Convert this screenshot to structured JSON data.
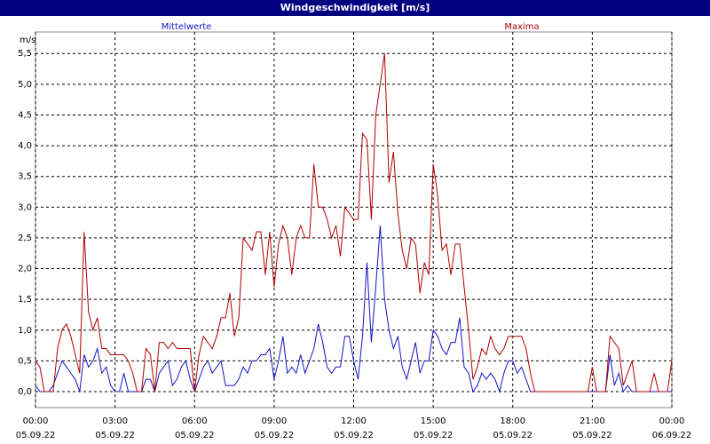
{
  "chart_data": {
    "type": "line",
    "title": "Windgeschwindigkeit [m/s]",
    "y_label": "m/s",
    "x": [
      0,
      10,
      20,
      30,
      40,
      50,
      60,
      70,
      80,
      90,
      100,
      110,
      120,
      130,
      140,
      150,
      160,
      170,
      180,
      190,
      200,
      210,
      220,
      230,
      240,
      250,
      260,
      270,
      280,
      290,
      300,
      310,
      320,
      330,
      340,
      350,
      360,
      370,
      380,
      390,
      400,
      410,
      420,
      430,
      440,
      450,
      460,
      470,
      480,
      490,
      500,
      510,
      520,
      530,
      540,
      550,
      560,
      570,
      580,
      590,
      600,
      610,
      620,
      630,
      640,
      650,
      660,
      670,
      680,
      690,
      700,
      710,
      720,
      730,
      740,
      750,
      760,
      770,
      780,
      790,
      800,
      810,
      820,
      830,
      840,
      850,
      860,
      870,
      880,
      890,
      900,
      910,
      920,
      930,
      940,
      950,
      960,
      970,
      980,
      990,
      1000,
      1010,
      1020,
      1030,
      1040,
      1050,
      1060,
      1070,
      1080,
      1090,
      1100,
      1110,
      1120,
      1130,
      1140,
      1150,
      1160,
      1170,
      1180,
      1190,
      1200,
      1210,
      1220,
      1230,
      1240,
      1250,
      1260,
      1270,
      1280,
      1290,
      1300,
      1310,
      1320,
      1330,
      1340,
      1350,
      1360,
      1370,
      1380,
      1390,
      1400,
      1410,
      1420,
      1430,
      1440
    ],
    "series": [
      {
        "name": "Mittelwerte",
        "color": "#1414c8",
        "values": [
          0.1,
          0,
          0,
          0,
          0.1,
          0.3,
          0.5,
          0.4,
          0.3,
          0.2,
          0,
          0.6,
          0.4,
          0.5,
          0.7,
          0.3,
          0.4,
          0.1,
          0,
          0,
          0.3,
          0,
          0,
          0,
          0,
          0.2,
          0.2,
          0,
          0.3,
          0.4,
          0.5,
          0.1,
          0.2,
          0.4,
          0.5,
          0.2,
          0,
          0.2,
          0.4,
          0.5,
          0.3,
          0.4,
          0.5,
          0.1,
          0.1,
          0.1,
          0.2,
          0.4,
          0.3,
          0.5,
          0.5,
          0.6,
          0.6,
          0.7,
          0.2,
          0.5,
          0.9,
          0.3,
          0.4,
          0.3,
          0.6,
          0.3,
          0.5,
          0.7,
          1.1,
          0.8,
          0.4,
          0.3,
          0.4,
          0.4,
          0.9,
          0.9,
          0.5,
          0.2,
          0.9,
          2.1,
          0.8,
          1.7,
          2.7,
          1.5,
          1.0,
          0.7,
          0.9,
          0.4,
          0.2,
          0.5,
          0.8,
          0.3,
          0.5,
          0.5,
          1.0,
          0.9,
          0.7,
          0.6,
          0.8,
          0.8,
          1.2,
          0.4,
          0.3,
          0,
          0.1,
          0.3,
          0.2,
          0.3,
          0.2,
          0,
          0.3,
          0.5,
          0.5,
          0.3,
          0.4,
          0.2,
          0,
          0,
          0,
          0,
          0,
          0,
          0,
          0,
          0,
          0,
          0,
          0,
          0,
          0,
          0,
          0,
          0,
          0,
          0.6,
          0.1,
          0.3,
          0,
          0.1,
          0,
          0,
          0,
          0,
          0,
          0,
          0,
          0,
          0,
          0
        ]
      },
      {
        "name": "Maxima",
        "color": "#b00000",
        "values": [
          0.5,
          0.4,
          0,
          0,
          0,
          0.7,
          1.0,
          1.1,
          0.9,
          0.6,
          0.3,
          2.6,
          1.3,
          1.0,
          1.2,
          0.7,
          0.7,
          0.6,
          0.6,
          0.6,
          0.6,
          0.5,
          0.3,
          0,
          0,
          0.7,
          0.6,
          0,
          0.8,
          0.8,
          0.7,
          0.8,
          0.7,
          0.7,
          0.7,
          0.7,
          0,
          0.6,
          0.9,
          0.8,
          0.7,
          0.9,
          1.2,
          1.2,
          1.6,
          0.9,
          1.2,
          2.5,
          2.4,
          2.3,
          2.6,
          2.6,
          1.9,
          2.6,
          1.7,
          2.4,
          2.7,
          2.5,
          1.9,
          2.5,
          2.7,
          2.5,
          2.5,
          3.7,
          3.0,
          3.0,
          2.8,
          2.5,
          2.7,
          2.2,
          3.0,
          2.9,
          2.8,
          2.8,
          4.2,
          4.1,
          2.8,
          4.5,
          5.0,
          5.5,
          3.4,
          3.9,
          2.9,
          2.3,
          2.0,
          2.5,
          2.4,
          1.6,
          2.1,
          1.9,
          3.7,
          3.2,
          2.3,
          2.4,
          1.9,
          2.4,
          2.4,
          1.7,
          1.0,
          0.2,
          0.4,
          0.7,
          0.6,
          0.9,
          0.7,
          0.6,
          0.7,
          0.9,
          0.9,
          0.9,
          0.9,
          0.7,
          0.3,
          0,
          0,
          0,
          0,
          0,
          0,
          0,
          0,
          0,
          0,
          0,
          0,
          0,
          0.4,
          0,
          0,
          0,
          0.9,
          0.8,
          0.7,
          0.1,
          0.3,
          0.5,
          0,
          0,
          0,
          0,
          0.3,
          0,
          0,
          0,
          0.5
        ]
      }
    ],
    "xlim": [
      0,
      1440
    ],
    "xticks": [
      {
        "value": 0,
        "label": "00:00\n05.09.22"
      },
      {
        "value": 180,
        "label": "03:00\n05.09.22"
      },
      {
        "value": 360,
        "label": "06:00\n05.09.22"
      },
      {
        "value": 540,
        "label": "09:00\n05.09.22"
      },
      {
        "value": 720,
        "label": "12:00\n05.09.22"
      },
      {
        "value": 900,
        "label": "15:00\n05.09.22"
      },
      {
        "value": 1080,
        "label": "18:00\n05.09.22"
      },
      {
        "value": 1260,
        "label": "21:00\n05.09.22"
      },
      {
        "value": 1440,
        "label": "00:00\n06.09.22"
      }
    ],
    "ylim": [
      -0.26,
      5.85
    ],
    "yticks": [
      {
        "value": 0,
        "label": "0,0"
      },
      {
        "value": 0.5,
        "label": "0,5"
      },
      {
        "value": 1,
        "label": "1,0"
      },
      {
        "value": 1.5,
        "label": "1,5"
      },
      {
        "value": 2,
        "label": "2,0"
      },
      {
        "value": 2.5,
        "label": "2,5"
      },
      {
        "value": 3,
        "label": "3,0"
      },
      {
        "value": 3.5,
        "label": "3,5"
      },
      {
        "value": 4,
        "label": "4,0"
      },
      {
        "value": 4.5,
        "label": "4,5"
      },
      {
        "value": 5,
        "label": "5,0"
      },
      {
        "value": 5.5,
        "label": "5,5"
      }
    ],
    "grid": true
  }
}
